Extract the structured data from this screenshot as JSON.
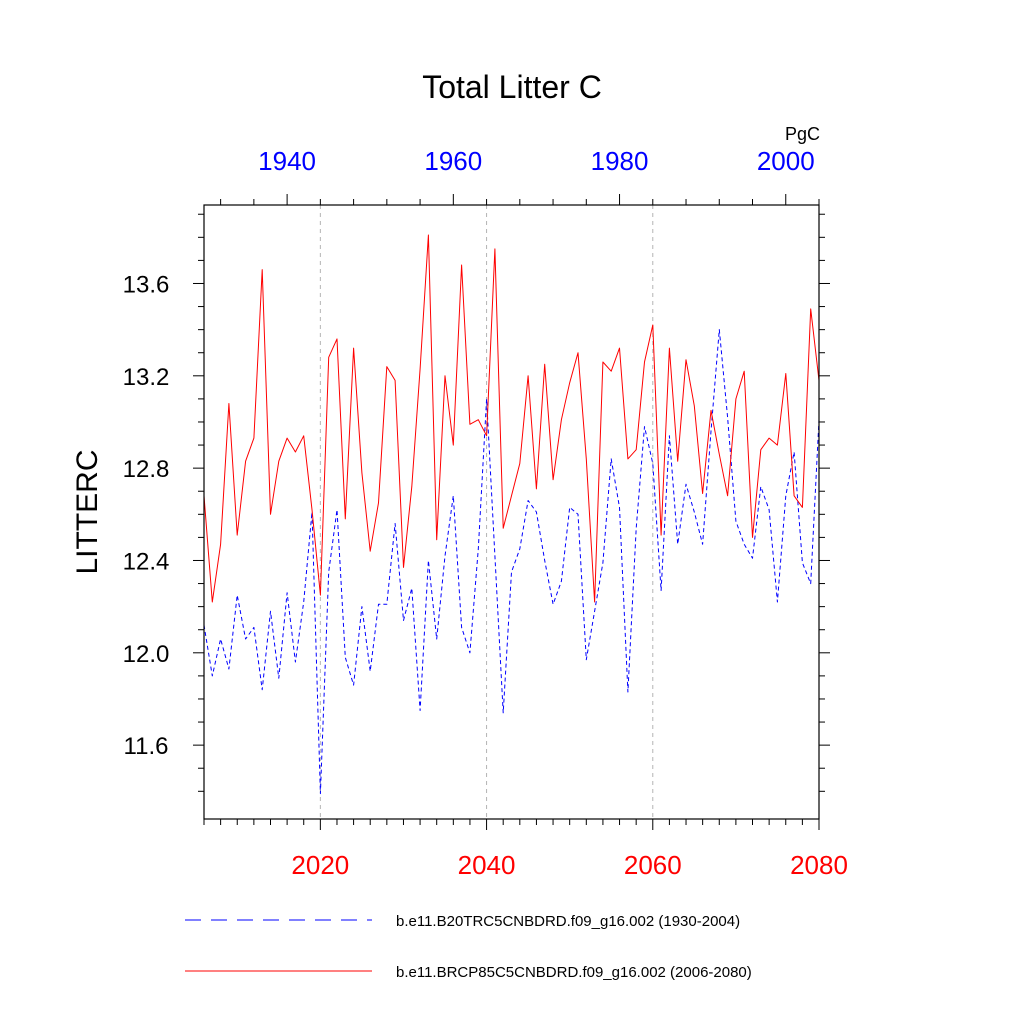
{
  "chart_data": {
    "type": "line",
    "title": "Total Litter C",
    "ylabel": "LITTERC",
    "units": "PgC",
    "ylim": [
      11.28,
      13.94
    ],
    "yticks": [
      11.6,
      12.0,
      12.4,
      12.8,
      13.2,
      13.6
    ],
    "ytick_labels": [
      "11.6",
      "12.0",
      "12.4",
      "12.8",
      "13.2",
      "13.6"
    ],
    "grid": "vertical dashed at bottom-axis major ticks",
    "bottom_axis": {
      "range": [
        2006,
        2080
      ],
      "ticks": [
        2020,
        2040,
        2060,
        2080
      ],
      "tick_labels": [
        "2020",
        "2040",
        "2060",
        "2080"
      ],
      "color": "#ff0000"
    },
    "top_axis": {
      "range": [
        1930,
        2004
      ],
      "ticks": [
        1940,
        1960,
        1980,
        2000
      ],
      "tick_labels": [
        "1940",
        "1960",
        "1980",
        "2000"
      ],
      "color": "#0000ff"
    },
    "series": [
      {
        "name": "b.e11.B20TRC5CNBDRD.f09_g16.002 (1930-2004)",
        "color": "#0000ff",
        "style": "dashed",
        "x_start": 1930,
        "values": [
          12.12,
          11.9,
          12.06,
          11.93,
          12.25,
          12.06,
          12.11,
          11.84,
          12.18,
          11.89,
          12.26,
          11.96,
          12.22,
          12.61,
          11.39,
          12.35,
          12.62,
          11.98,
          11.86,
          12.2,
          11.92,
          12.21,
          12.21,
          12.56,
          12.14,
          12.28,
          11.75,
          12.4,
          12.06,
          12.42,
          12.68,
          12.11,
          12.0,
          12.45,
          13.1,
          12.42,
          11.74,
          12.35,
          12.45,
          12.66,
          12.61,
          12.4,
          12.21,
          12.31,
          12.63,
          12.6,
          11.97,
          12.18,
          12.39,
          12.84,
          12.63,
          11.83,
          12.54,
          12.98,
          12.82,
          12.27,
          12.94,
          12.47,
          12.73,
          12.61,
          12.47,
          12.96,
          13.4,
          13.02,
          12.57,
          12.47,
          12.41,
          12.72,
          12.62,
          12.22,
          12.68,
          12.87,
          12.39,
          12.3,
          13.01
        ]
      },
      {
        "name": "b.e11.BRCP85C5CNBDRD.f09_g16.002 (2006-2080)",
        "color": "#ff0000",
        "style": "solid",
        "x_start": 2006,
        "values": [
          12.68,
          12.22,
          12.47,
          13.08,
          12.51,
          12.83,
          12.93,
          13.66,
          12.6,
          12.83,
          12.93,
          12.87,
          12.94,
          12.62,
          12.25,
          13.28,
          13.36,
          12.58,
          13.32,
          12.78,
          12.44,
          12.65,
          13.24,
          13.18,
          12.37,
          12.72,
          13.23,
          13.81,
          12.49,
          13.2,
          12.9,
          13.68,
          12.99,
          13.01,
          12.94,
          13.75,
          12.54,
          12.68,
          12.82,
          13.2,
          12.71,
          13.25,
          12.75,
          13.01,
          13.17,
          13.3,
          12.84,
          12.22,
          13.26,
          13.22,
          13.32,
          12.84,
          12.88,
          13.26,
          13.42,
          12.51,
          13.32,
          12.83,
          13.27,
          13.07,
          12.69,
          13.05,
          12.86,
          12.68,
          13.1,
          13.22,
          12.5,
          12.88,
          12.93,
          12.9,
          13.21,
          12.68,
          12.63,
          13.49,
          13.18
        ]
      }
    ]
  }
}
